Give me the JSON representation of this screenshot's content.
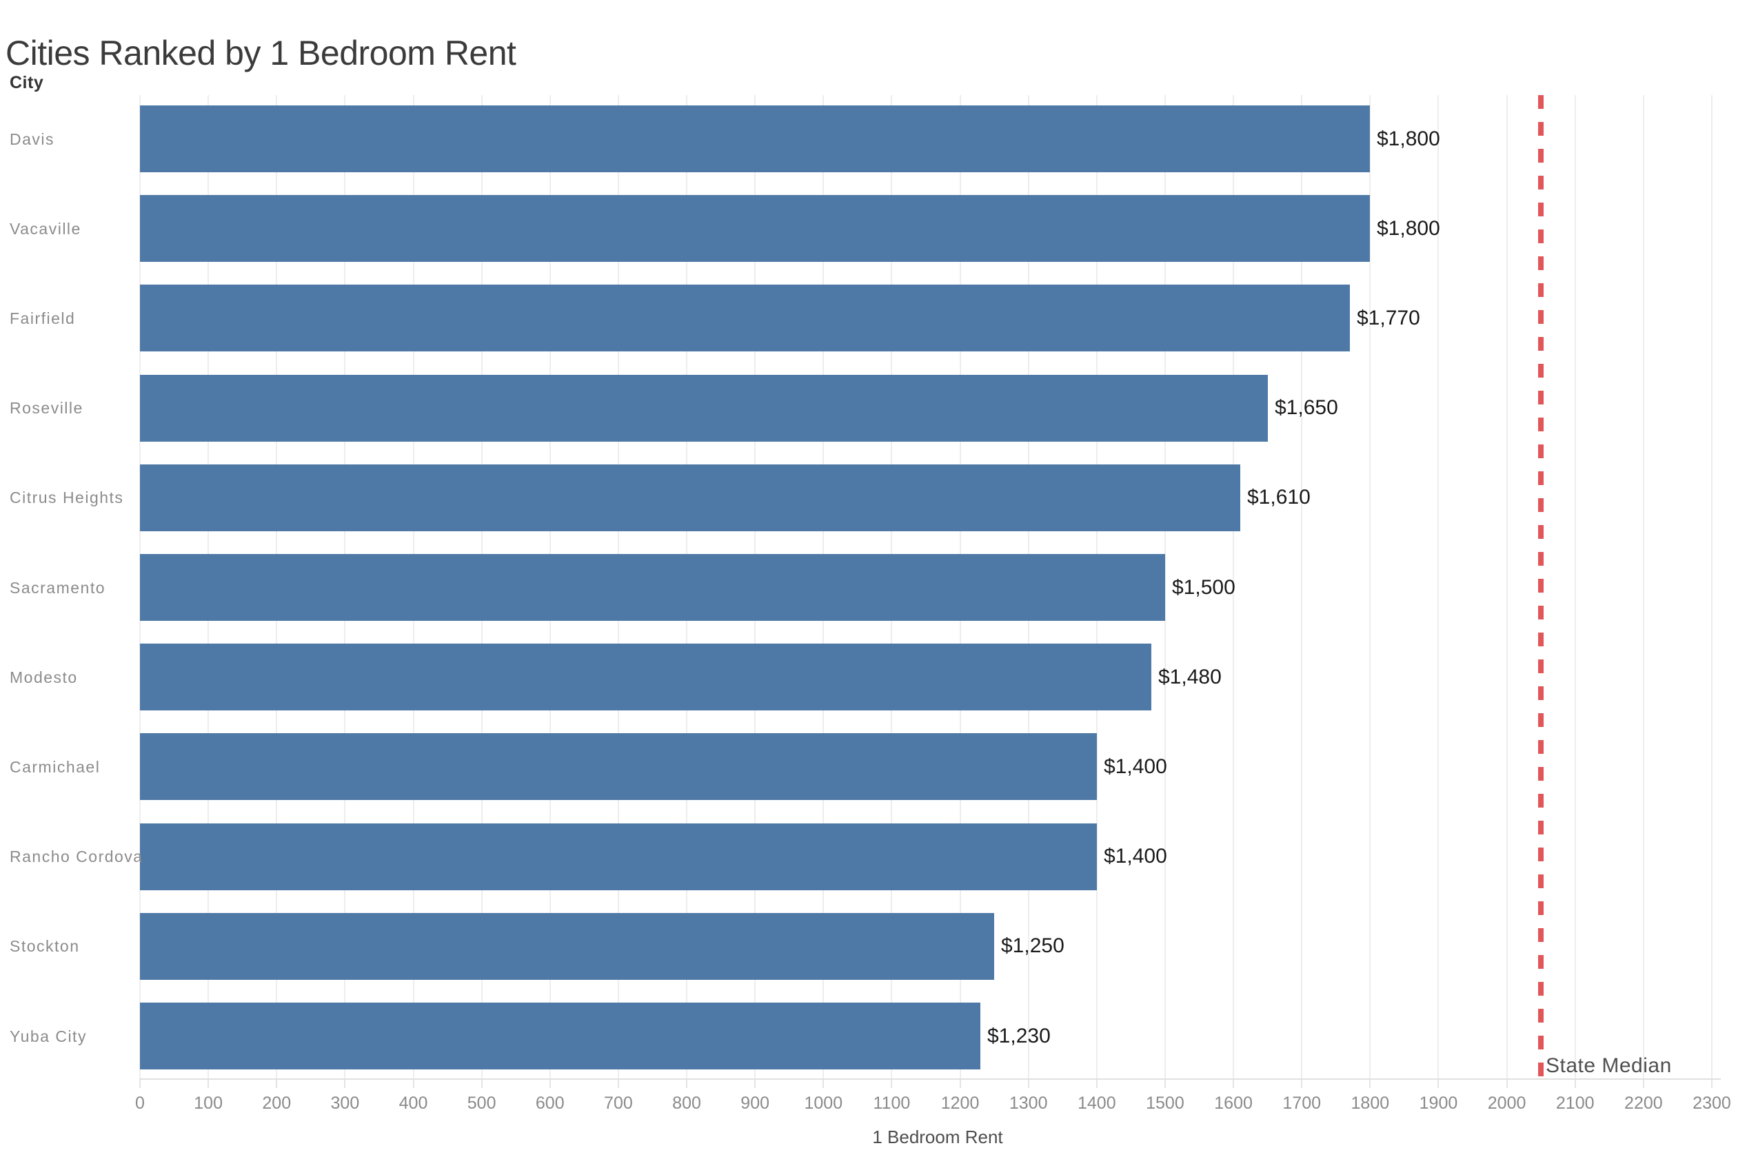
{
  "chart_data": {
    "type": "bar",
    "orientation": "horizontal",
    "title": "Cities Ranked by 1 Bedroom Rent",
    "row_header": "City",
    "xlabel": "1 Bedroom Rent",
    "categories": [
      "Davis",
      "Vacaville",
      "Fairfield",
      "Roseville",
      "Citrus Heights",
      "Sacramento",
      "Modesto",
      "Carmichael",
      "Rancho Cordova",
      "Stockton",
      "Yuba City"
    ],
    "values": [
      1800,
      1800,
      1770,
      1650,
      1610,
      1500,
      1480,
      1400,
      1400,
      1250,
      1230
    ],
    "value_labels": [
      "$1,800",
      "$1,800",
      "$1,770",
      "$1,650",
      "$1,610",
      "$1,500",
      "$1,480",
      "$1,400",
      "$1,400",
      "$1,250",
      "$1,230"
    ],
    "xlim": [
      0,
      2300
    ],
    "x_tick_step": 100,
    "grid": true,
    "legend": false,
    "bar_color": "#4e79a7",
    "reference_line": {
      "value": 2050,
      "label": "State Median",
      "color": "#e15759",
      "style": "dashed"
    }
  }
}
